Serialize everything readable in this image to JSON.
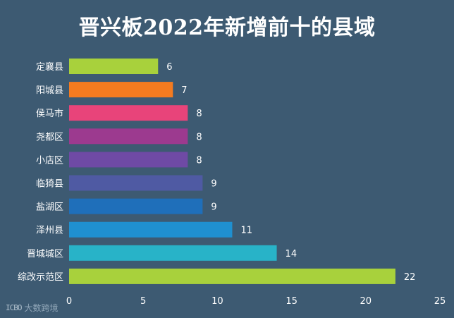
{
  "chart_data": {
    "type": "bar",
    "orientation": "horizontal",
    "title": "晋兴板2022年新增前十的县域",
    "categories": [
      "定襄县",
      "阳城县",
      "侯马市",
      "尧都区",
      "小店区",
      "临猗县",
      "盐湖区",
      "泽州县",
      "晋城城区",
      "综改示范区"
    ],
    "values": [
      6,
      7,
      8,
      8,
      8,
      9,
      9,
      11,
      14,
      22
    ],
    "colors": [
      "#a8d13c",
      "#f47b20",
      "#e8447a",
      "#9c3a8f",
      "#6f4aa5",
      "#4f5aa3",
      "#1f6fba",
      "#1f90d0",
      "#28b3c8",
      "#a8d13c"
    ],
    "xlim": [
      0,
      25
    ],
    "xticks": [
      "0",
      "5",
      "10",
      "15",
      "20",
      "25"
    ],
    "xlabel": "",
    "ylabel": "",
    "grid": false,
    "legend": "none"
  },
  "watermark": {
    "logo": "ICBO",
    "text": "大数跨境"
  }
}
